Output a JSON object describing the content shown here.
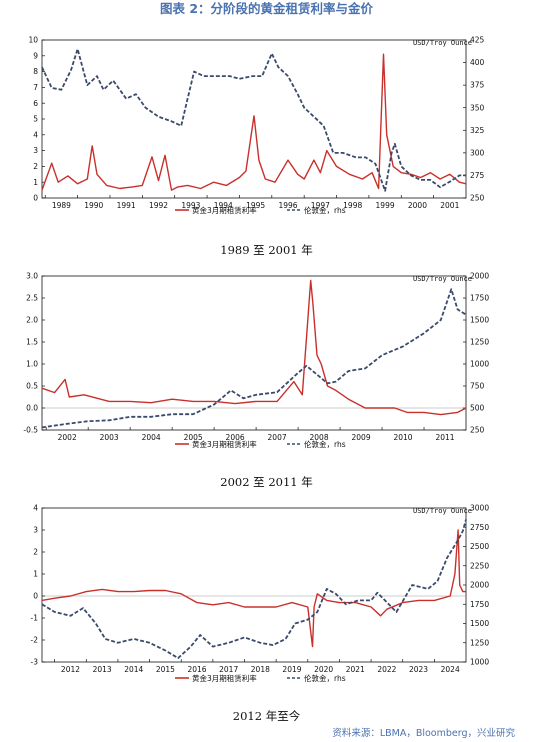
{
  "figure_title": "图表 2：分阶段的黄金租赁利率与金价",
  "source": "资料来源：LBMA，Bloomberg，兴业研究",
  "colors": {
    "lease": "#c9302c",
    "gold": "#3a4a6b",
    "title": "#4a72b0"
  },
  "chart_data": [
    {
      "type": "line",
      "caption": "1989 至 2001 年",
      "right_unit": "USD/Troy Ounce",
      "x_ticks": [
        "1989",
        "1990",
        "1991",
        "1992",
        "1993",
        "1994",
        "1995",
        "1996",
        "1997",
        "1998",
        "1999",
        "2000",
        "2001"
      ],
      "x_range": [
        1988.9,
        2002.0
      ],
      "y_left": {
        "range": [
          0,
          10
        ],
        "ticks": [
          "10",
          "9",
          "8",
          "7",
          "6",
          "5",
          "4",
          "3",
          "2",
          "1",
          "0"
        ]
      },
      "y_right": {
        "range": [
          250,
          425
        ],
        "ticks": [
          "425",
          "400",
          "375",
          "350",
          "325",
          "300",
          "275",
          "250"
        ]
      },
      "series": [
        {
          "name": "黄金3月期租赁利率",
          "axis": "left",
          "x": [
            1988.9,
            1989.2,
            1989.4,
            1989.7,
            1990.0,
            1990.3,
            1990.45,
            1990.6,
            1990.9,
            1991.3,
            1991.7,
            1992.0,
            1992.3,
            1992.5,
            1992.7,
            1992.9,
            1993.1,
            1993.4,
            1993.8,
            1994.2,
            1994.6,
            1995.0,
            1995.2,
            1995.45,
            1995.6,
            1995.8,
            1996.1,
            1996.5,
            1996.8,
            1997.0,
            1997.3,
            1997.5,
            1997.7,
            1998.0,
            1998.4,
            1998.8,
            1999.1,
            1999.3,
            1999.45,
            1999.55,
            1999.75,
            2000.0,
            2000.3,
            2000.6,
            2000.9,
            2001.2,
            2001.5,
            2001.8,
            2002.0
          ],
          "y": [
            0.5,
            2.2,
            1.0,
            1.4,
            0.9,
            1.2,
            3.3,
            1.5,
            0.8,
            0.6,
            0.7,
            0.8,
            2.6,
            1.1,
            2.7,
            0.5,
            0.7,
            0.8,
            0.6,
            1.0,
            0.8,
            1.3,
            1.7,
            5.2,
            2.4,
            1.2,
            1.0,
            2.4,
            1.5,
            1.2,
            2.4,
            1.6,
            3.0,
            2.0,
            1.5,
            1.2,
            1.6,
            0.6,
            9.1,
            4.0,
            2.0,
            1.6,
            1.5,
            1.3,
            1.6,
            1.2,
            1.5,
            1.0,
            0.9
          ]
        },
        {
          "name": "伦敦金，rhs",
          "axis": "right",
          "x": [
            1988.9,
            1989.2,
            1989.5,
            1989.8,
            1990.0,
            1990.3,
            1990.6,
            1990.8,
            1991.1,
            1991.5,
            1991.8,
            1992.1,
            1992.5,
            1992.9,
            1993.2,
            1993.4,
            1993.6,
            1993.9,
            1994.3,
            1994.7,
            1995.0,
            1995.4,
            1995.7,
            1996.0,
            1996.2,
            1996.5,
            1996.8,
            1997.0,
            1997.3,
            1997.6,
            1997.9,
            1998.2,
            1998.6,
            1998.9,
            1999.2,
            1999.5,
            1999.7,
            1999.8,
            2000.0,
            2000.3,
            2000.6,
            2000.9,
            2001.2,
            2001.5,
            2001.8,
            2002.0
          ],
          "y": [
            395,
            372,
            370,
            392,
            415,
            375,
            385,
            370,
            380,
            360,
            365,
            350,
            340,
            335,
            330,
            360,
            390,
            385,
            385,
            385,
            382,
            385,
            385,
            410,
            395,
            385,
            365,
            350,
            340,
            330,
            300,
            300,
            295,
            295,
            288,
            258,
            300,
            310,
            285,
            275,
            270,
            270,
            262,
            268,
            275,
            275
          ]
        }
      ]
    },
    {
      "type": "line",
      "caption": "2002 至 2011 年",
      "right_unit": "USD/Troy Ounce",
      "x_ticks": [
        "2002",
        "2003",
        "2004",
        "2005",
        "2006",
        "2007",
        "2008",
        "2009",
        "2010",
        "2011"
      ],
      "x_range": [
        2001.9,
        2012.0
      ],
      "y_left": {
        "range": [
          -0.5,
          3.0
        ],
        "ticks": [
          "3.0",
          "2.5",
          "2.0",
          "1.5",
          "1.0",
          "0.5",
          "0.0",
          "-0.5"
        ]
      },
      "y_right": {
        "range": [
          250,
          2000
        ],
        "ticks": [
          "2000",
          "1750",
          "1500",
          "1250",
          "1000",
          "750",
          "500",
          "250"
        ]
      },
      "series": [
        {
          "name": "黄金3月期租赁利率",
          "axis": "left",
          "x": [
            2001.9,
            2002.2,
            2002.45,
            2002.55,
            2002.9,
            2003.5,
            2004.0,
            2004.5,
            2005.0,
            2005.5,
            2006.0,
            2006.5,
            2007.0,
            2007.5,
            2007.9,
            2008.1,
            2008.3,
            2008.35,
            2008.45,
            2008.55,
            2008.7,
            2008.9,
            2009.2,
            2009.6,
            2010.0,
            2010.3,
            2010.6,
            2011.0,
            2011.4,
            2011.8,
            2012.0
          ],
          "y": [
            0.45,
            0.35,
            0.65,
            0.25,
            0.3,
            0.15,
            0.15,
            0.12,
            0.2,
            0.15,
            0.15,
            0.1,
            0.15,
            0.15,
            0.6,
            0.3,
            2.9,
            2.4,
            1.2,
            1.0,
            0.5,
            0.4,
            0.2,
            0.0,
            0.0,
            0.0,
            -0.1,
            -0.1,
            -0.15,
            -0.1,
            0.0
          ]
        },
        {
          "name": "伦敦金，rhs",
          "axis": "right",
          "x": [
            2001.9,
            2002.5,
            2003.0,
            2003.5,
            2004.0,
            2004.5,
            2005.0,
            2005.5,
            2006.0,
            2006.4,
            2006.7,
            2007.0,
            2007.5,
            2008.0,
            2008.2,
            2008.7,
            2008.9,
            2009.2,
            2009.6,
            2010.0,
            2010.5,
            2011.0,
            2011.4,
            2011.65,
            2011.8,
            2012.0
          ],
          "y": [
            280,
            320,
            350,
            360,
            400,
            400,
            430,
            430,
            540,
            700,
            610,
            650,
            680,
            900,
            980,
            780,
            800,
            920,
            950,
            1100,
            1200,
            1350,
            1500,
            1850,
            1620,
            1560
          ]
        }
      ]
    },
    {
      "type": "line",
      "caption": "2012 年至今",
      "right_unit": "USD/Troy Ounce",
      "x_ticks": [
        "2012",
        "2013",
        "2014",
        "2015",
        "2016",
        "2017",
        "2018",
        "2019",
        "2020",
        "2021",
        "2022",
        "2023",
        "2024"
      ],
      "x_range": [
        2011.6,
        2025.0
      ],
      "y_left": {
        "range": [
          -3,
          4
        ],
        "ticks": [
          "4",
          "3",
          "2",
          "1",
          "0",
          "-1",
          "-2",
          "-3"
        ]
      },
      "y_right": {
        "range": [
          1000,
          3000
        ],
        "ticks": [
          "3000",
          "2750",
          "2500",
          "2250",
          "2000",
          "1750",
          "1500",
          "1250",
          "1000"
        ]
      },
      "series": [
        {
          "name": "黄金3月期租赁利率",
          "axis": "left",
          "x": [
            2011.6,
            2012.0,
            2012.5,
            2013.0,
            2013.5,
            2014.0,
            2014.5,
            2015.0,
            2015.5,
            2016.0,
            2016.5,
            2017.0,
            2017.5,
            2018.0,
            2018.5,
            2019.0,
            2019.5,
            2020.0,
            2020.15,
            2020.2,
            2020.3,
            2020.6,
            2021.0,
            2021.5,
            2022.0,
            2022.3,
            2022.5,
            2023.0,
            2023.5,
            2024.0,
            2024.5,
            2024.65,
            2024.75,
            2024.8,
            2024.9,
            2025.0
          ],
          "y": [
            -0.2,
            -0.1,
            0.0,
            0.2,
            0.3,
            0.2,
            0.2,
            0.25,
            0.25,
            0.1,
            -0.3,
            -0.4,
            -0.3,
            -0.5,
            -0.5,
            -0.5,
            -0.3,
            -0.5,
            -2.3,
            -0.5,
            0.1,
            -0.2,
            -0.3,
            -0.3,
            -0.5,
            -0.9,
            -0.6,
            -0.3,
            -0.2,
            -0.2,
            0.0,
            1.0,
            3.0,
            0.5,
            0.2,
            0.2
          ]
        },
        {
          "name": "伦敦金，rhs",
          "axis": "right",
          "x": [
            2011.6,
            2012.0,
            2012.5,
            2012.9,
            2013.3,
            2013.6,
            2014.0,
            2014.5,
            2015.0,
            2015.5,
            2015.9,
            2016.3,
            2016.6,
            2017.0,
            2017.5,
            2018.0,
            2018.5,
            2018.9,
            2019.3,
            2019.6,
            2020.0,
            2020.3,
            2020.6,
            2020.9,
            2021.2,
            2021.6,
            2022.0,
            2022.2,
            2022.8,
            2023.3,
            2023.8,
            2024.1,
            2024.4,
            2024.7,
            2024.9,
            2025.0
          ],
          "y": [
            1750,
            1650,
            1600,
            1700,
            1500,
            1300,
            1250,
            1300,
            1250,
            1150,
            1050,
            1200,
            1350,
            1200,
            1250,
            1320,
            1250,
            1220,
            1300,
            1500,
            1550,
            1650,
            1950,
            1880,
            1750,
            1800,
            1800,
            1900,
            1650,
            2000,
            1950,
            2050,
            2350,
            2550,
            2700,
            2850
          ]
        }
      ]
    }
  ],
  "legend": [
    {
      "label": "黄金3月期租赁利率",
      "style": "solid"
    },
    {
      "label": "伦敦金，rhs",
      "style": "dashed"
    }
  ]
}
